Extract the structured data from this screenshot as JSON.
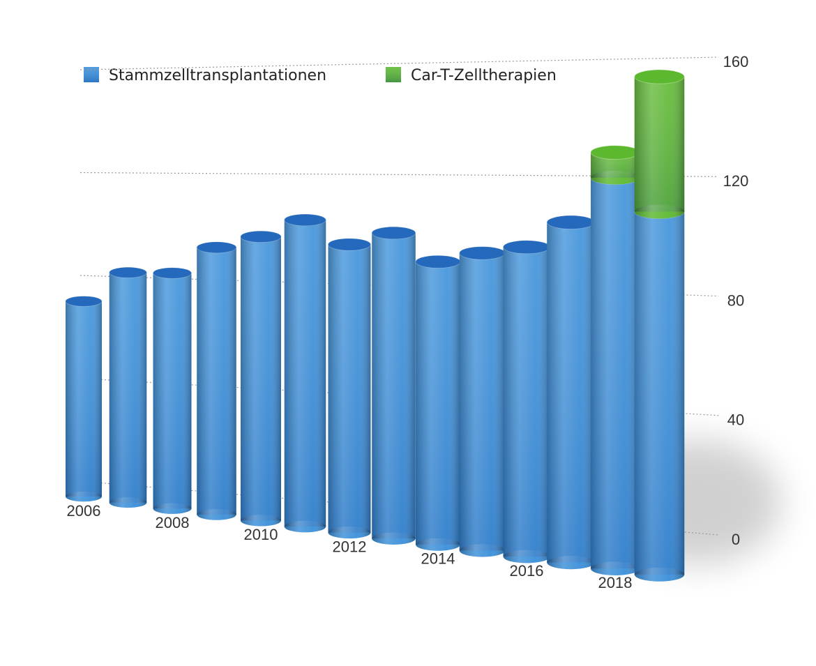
{
  "chart_data": {
    "type": "bar3d_stacked",
    "categories": [
      "2006",
      null,
      "2008",
      null,
      "2010",
      null,
      "2012",
      null,
      "2014",
      null,
      "2016",
      null,
      "2018",
      null
    ],
    "series": [
      {
        "name": "Stammzelltransplantationen",
        "color": "#3a8fd9",
        "values": [
          80,
          92,
          92,
          102,
          106,
          112,
          103,
          107,
          97,
          100,
          102,
          110,
          124,
          113
        ]
      },
      {
        "name": "Car-T-Zelltherapien",
        "color": "#5cb82e",
        "values": [
          null,
          null,
          null,
          null,
          null,
          null,
          null,
          null,
          null,
          null,
          null,
          null,
          8,
          42
        ]
      }
    ],
    "ylim": [
      0,
      160
    ],
    "yticks": [
      0,
      40,
      80,
      120,
      160
    ],
    "grid": true
  }
}
